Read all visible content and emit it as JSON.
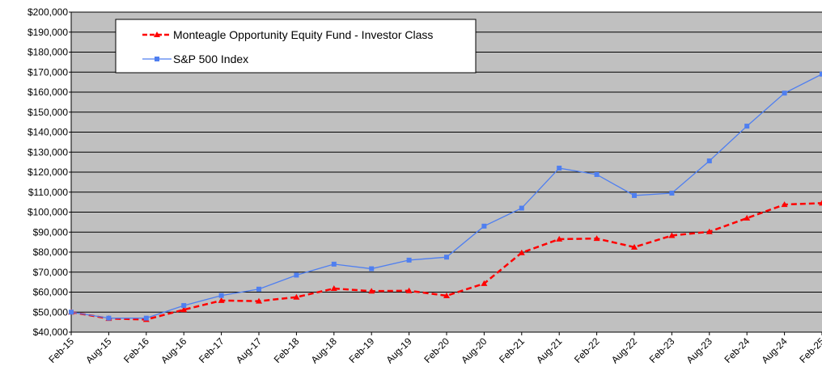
{
  "chart_data": {
    "type": "line",
    "categories": [
      "Feb-15",
      "Aug-15",
      "Feb-16",
      "Aug-16",
      "Feb-17",
      "Aug-17",
      "Feb-18",
      "Aug-18",
      "Feb-19",
      "Aug-19",
      "Feb-20",
      "Aug-20",
      "Feb-21",
      "Aug-21",
      "Feb-22",
      "Aug-22",
      "Feb-23",
      "Aug-23",
      "Feb-24",
      "Aug-24",
      "Feb-25"
    ],
    "series": [
      {
        "name": "Monteagle Opportunity Equity Fund - Investor Class",
        "color": "#ff0000",
        "marker": "triangle",
        "dashed": true,
        "values": [
          50000,
          46800,
          46300,
          51200,
          55800,
          55500,
          57500,
          61800,
          60500,
          60700,
          58200,
          64300,
          79700,
          86500,
          86800,
          82500,
          88300,
          90200,
          97000,
          103800,
          104500
        ]
      },
      {
        "name": "S&P 500 Index",
        "color": "#4f7ff0",
        "marker": "square",
        "dashed": false,
        "values": [
          50000,
          47000,
          47000,
          53300,
          58300,
          61500,
          68500,
          74000,
          71700,
          76000,
          77500,
          93000,
          102000,
          122000,
          118800,
          108300,
          109500,
          125600,
          143000,
          159500,
          169000
        ]
      }
    ],
    "ylim": [
      40000,
      200000
    ],
    "yticks": [
      {
        "value": 40000,
        "label": "$40,000"
      },
      {
        "value": 50000,
        "label": "$50,000"
      },
      {
        "value": 60000,
        "label": "$60,000"
      },
      {
        "value": 70000,
        "label": "$70,000"
      },
      {
        "value": 80000,
        "label": "$80,000"
      },
      {
        "value": 90000,
        "label": "$90,000"
      },
      {
        "value": 100000,
        "label": "$100,000"
      },
      {
        "value": 110000,
        "label": "$110,000"
      },
      {
        "value": 120000,
        "label": "$120,000"
      },
      {
        "value": 130000,
        "label": "$130,000"
      },
      {
        "value": 140000,
        "label": "$140,000"
      },
      {
        "value": 150000,
        "label": "$150,000"
      },
      {
        "value": 160000,
        "label": "$160,000"
      },
      {
        "value": 170000,
        "label": "$170,000"
      },
      {
        "value": 180000,
        "label": "$180,000"
      },
      {
        "value": 190000,
        "label": "$190,000"
      },
      {
        "value": 200000,
        "label": "$200,000"
      }
    ],
    "grid": true
  }
}
